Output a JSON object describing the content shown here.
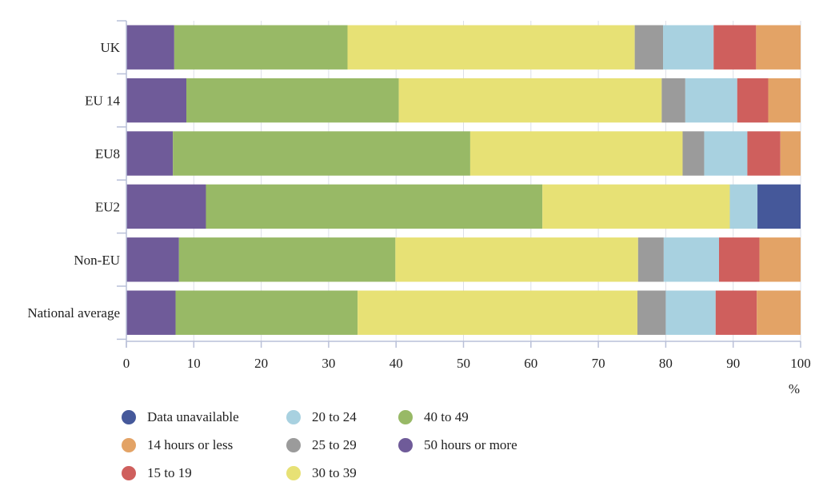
{
  "chart_data": {
    "type": "bar",
    "orientation": "horizontal",
    "stacked": true,
    "categories": [
      "UK",
      "EU 14",
      "EU8",
      "EU2",
      "Non-EU",
      "National average"
    ],
    "xlim": [
      0,
      100
    ],
    "xticks": [
      0,
      10,
      20,
      30,
      40,
      50,
      60,
      70,
      80,
      90,
      100
    ],
    "x_unit": "%",
    "grid": true,
    "legend_position": "bottom",
    "series": [
      {
        "name": "50 hours or more",
        "color": "#6f5b99",
        "values": [
          7.1,
          8.9,
          6.9,
          11.8,
          7.8,
          7.3
        ]
      },
      {
        "name": "40 to 49",
        "color": "#98b966",
        "values": [
          25.7,
          31.5,
          44.1,
          49.9,
          32.1,
          27.0
        ]
      },
      {
        "name": "30 to 39",
        "color": "#e7e175",
        "values": [
          42.6,
          39.0,
          31.5,
          27.8,
          36.0,
          41.5
        ]
      },
      {
        "name": "25 to 29",
        "color": "#9b9b9b",
        "values": [
          4.2,
          3.5,
          3.2,
          0,
          3.8,
          4.2
        ]
      },
      {
        "name": "20 to 24",
        "color": "#a8d1e0",
        "values": [
          7.5,
          7.7,
          6.4,
          4.1,
          8.2,
          7.4
        ]
      },
      {
        "name": "15 to 19",
        "color": "#cf5f5d",
        "values": [
          6.3,
          4.6,
          4.9,
          0,
          6.0,
          6.1
        ]
      },
      {
        "name": "14 hours or less",
        "color": "#e3a366",
        "values": [
          6.6,
          4.8,
          3.0,
          0,
          6.1,
          6.5
        ]
      },
      {
        "name": "Data unavailable",
        "color": "#45589a",
        "values": [
          0,
          0,
          0,
          6.4,
          0,
          0
        ]
      }
    ],
    "legend": [
      {
        "name": "Data unavailable",
        "color": "#45589a"
      },
      {
        "name": "14 hours or less",
        "color": "#e3a366"
      },
      {
        "name": "15 to 19",
        "color": "#cf5f5d"
      },
      {
        "name": "20 to 24",
        "color": "#a8d1e0"
      },
      {
        "name": "25 to 29",
        "color": "#9b9b9b"
      },
      {
        "name": "30 to 39",
        "color": "#e7e175"
      },
      {
        "name": "40 to 49",
        "color": "#98b966"
      },
      {
        "name": "50 hours or more",
        "color": "#6f5b99"
      }
    ]
  }
}
